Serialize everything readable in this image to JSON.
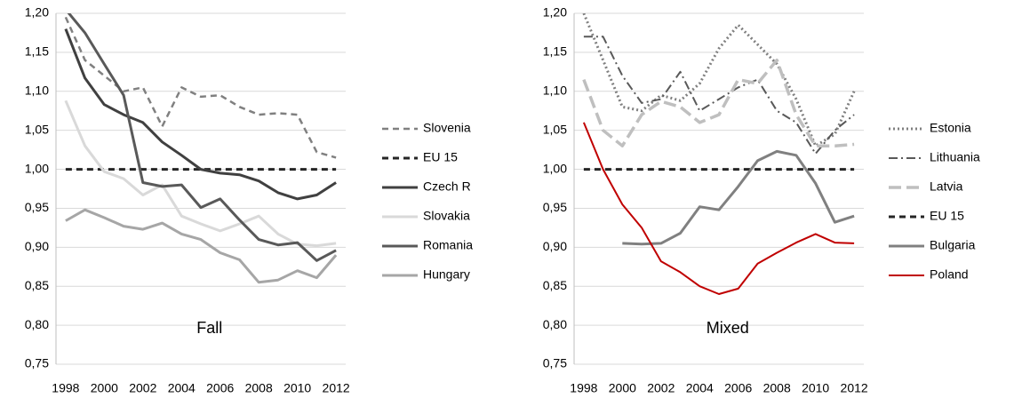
{
  "chart_data": [
    {
      "type": "line",
      "annotation": "Fall",
      "categories": [
        "1998",
        null,
        "2000",
        null,
        "2002",
        null,
        "2004",
        null,
        "2006",
        null,
        "2008",
        null,
        "2010",
        null,
        "2012"
      ],
      "ylim": [
        0.75,
        1.2
      ],
      "yticks": [
        {
          "value": 0.75,
          "label": "0,75"
        },
        {
          "value": 0.8,
          "label": "0,80"
        },
        {
          "value": 0.85,
          "label": "0,85"
        },
        {
          "value": 0.9,
          "label": "0,90"
        },
        {
          "value": 0.95,
          "label": "0,95"
        },
        {
          "value": 1.0,
          "label": "1,00"
        },
        {
          "value": 1.05,
          "label": "1,05"
        },
        {
          "value": 1.1,
          "label": "1,10"
        },
        {
          "value": 1.15,
          "label": "1,15"
        },
        {
          "value": 1.2,
          "label": "1,20"
        }
      ],
      "grid": true,
      "series": [
        {
          "name": "Slovenia",
          "color": "#808080",
          "dash": "7,5",
          "width": 2.5,
          "values": [
            1.195,
            1.14,
            1.12,
            1.1,
            1.105,
            1.055,
            1.105,
            1.093,
            1.095,
            1.08,
            1.07,
            1.072,
            1.07,
            1.022,
            1.015
          ]
        },
        {
          "name": "EU 15",
          "color": "#262626",
          "dash": "7,5",
          "width": 3,
          "values": [
            1,
            1,
            1,
            1,
            1,
            1,
            1,
            1,
            1,
            1,
            1,
            1,
            1,
            1,
            1
          ]
        },
        {
          "name": "Czech R",
          "color": "#404040",
          "dash": "",
          "width": 3,
          "values": [
            1.18,
            1.117,
            1.083,
            1.07,
            1.06,
            1.035,
            1.018,
            1.0,
            0.995,
            0.993,
            0.985,
            0.97,
            0.962,
            0.967,
            0.983
          ]
        },
        {
          "name": "Slovakia",
          "color": "#d9d9d9",
          "dash": "",
          "width": 3,
          "values": [
            1.088,
            1.03,
            0.997,
            0.988,
            0.967,
            0.98,
            0.94,
            0.93,
            0.921,
            0.93,
            0.94,
            0.917,
            0.904,
            0.902,
            0.905
          ]
        },
        {
          "name": "Romania",
          "color": "#595959",
          "dash": "",
          "width": 3,
          "values": [
            1.205,
            1.175,
            1.135,
            1.095,
            0.983,
            0.978,
            0.98,
            0.951,
            0.962,
            0.935,
            0.91,
            0.903,
            0.906,
            0.883,
            0.896
          ]
        },
        {
          "name": "Hungary",
          "color": "#a6a6a6",
          "dash": "",
          "width": 3,
          "values": [
            0.934,
            0.948,
            0.938,
            0.927,
            0.923,
            0.931,
            0.917,
            0.91,
            0.893,
            0.884,
            0.855,
            0.858,
            0.87,
            0.861,
            0.89
          ]
        }
      ]
    },
    {
      "type": "line",
      "annotation": "Mixed",
      "categories": [
        "1998",
        null,
        "2000",
        null,
        "2002",
        null,
        "2004",
        null,
        "2006",
        null,
        "2008",
        null,
        "2010",
        null,
        "2012"
      ],
      "ylim": [
        0.75,
        1.2
      ],
      "yticks": [
        {
          "value": 0.75,
          "label": "0,75"
        },
        {
          "value": 0.8,
          "label": "0,80"
        },
        {
          "value": 0.85,
          "label": "0,85"
        },
        {
          "value": 0.9,
          "label": "0,90"
        },
        {
          "value": 0.95,
          "label": "0,95"
        },
        {
          "value": 1.0,
          "label": "1,00"
        },
        {
          "value": 1.05,
          "label": "1,05"
        },
        {
          "value": 1.1,
          "label": "1,10"
        },
        {
          "value": 1.15,
          "label": "1,15"
        },
        {
          "value": 1.2,
          "label": "1,20"
        }
      ],
      "grid": true,
      "series": [
        {
          "name": "Estonia",
          "color": "#808080",
          "dash": "2,3",
          "width": 3,
          "values": [
            1.2,
            1.14,
            1.08,
            1.075,
            1.095,
            1.088,
            1.11,
            1.155,
            1.185,
            1.16,
            1.135,
            1.09,
            1.03,
            1.045,
            1.1
          ]
        },
        {
          "name": "Lithuania",
          "color": "#595959",
          "dash": "10,4,2,4",
          "width": 2,
          "values": [
            1.17,
            1.17,
            1.12,
            1.085,
            1.09,
            1.125,
            1.075,
            1.09,
            1.105,
            1.115,
            1.075,
            1.06,
            1.02,
            1.05,
            1.07
          ]
        },
        {
          "name": "Latvia",
          "color": "#bfbfbf",
          "dash": "14,6",
          "width": 3.5,
          "values": [
            1.115,
            1.05,
            1.03,
            1.07,
            1.087,
            1.08,
            1.06,
            1.07,
            1.115,
            1.11,
            1.14,
            1.07,
            1.03,
            1.03,
            1.032
          ]
        },
        {
          "name": "EU 15",
          "color": "#262626",
          "dash": "7,5",
          "width": 3,
          "values": [
            1,
            1,
            1,
            1,
            1,
            1,
            1,
            1,
            1,
            1,
            1,
            1,
            1,
            1,
            1
          ]
        },
        {
          "name": "Bulgaria",
          "color": "#808080",
          "dash": "",
          "width": 3,
          "values": [
            null,
            null,
            0.905,
            0.904,
            0.905,
            0.918,
            0.952,
            0.948,
            0.978,
            1.011,
            1.023,
            1.018,
            0.982,
            0.932,
            0.94
          ]
        },
        {
          "name": "Poland",
          "color": "#c00000",
          "dash": "",
          "width": 2,
          "values": [
            1.06,
            1.0,
            0.955,
            0.925,
            0.882,
            0.868,
            0.85,
            0.84,
            0.847,
            0.879,
            0.893,
            0.906,
            0.917,
            0.906,
            0.905
          ]
        }
      ]
    }
  ]
}
